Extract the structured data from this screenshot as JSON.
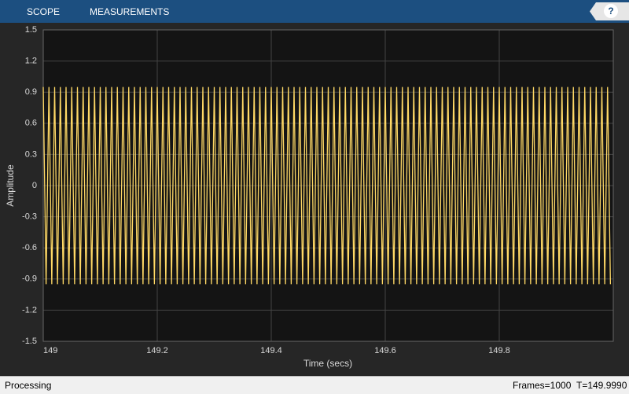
{
  "toolbar": {
    "tabs": [
      "SCOPE",
      "MEASUREMENTS"
    ],
    "help": "?"
  },
  "chart_data": {
    "type": "line",
    "xlabel": "Time (secs)",
    "ylabel": "Amplitude",
    "xlim": [
      149,
      150
    ],
    "xticks": [
      149,
      149.2,
      149.4,
      149.6,
      149.8
    ],
    "ylim": [
      -1.5,
      1.5
    ],
    "yticks": [
      -1.5,
      -1.2,
      -0.9,
      -0.6,
      -0.3,
      0,
      0.3,
      0.6,
      0.9,
      1.2,
      1.5
    ],
    "grid": true,
    "x": [
      149,
      149.005,
      149.01,
      149.015,
      149.02,
      149.025,
      149.03,
      149.035,
      149.04,
      149.045,
      149.05,
      149.055,
      149.06,
      149.065,
      149.07,
      149.075,
      149.08,
      149.085,
      149.09,
      149.095,
      149.1,
      149.105,
      149.11,
      149.115,
      149.12,
      149.125,
      149.13,
      149.135,
      149.14,
      149.145,
      149.15,
      149.155,
      149.16,
      149.165,
      149.17,
      149.175,
      149.18,
      149.185,
      149.19,
      149.195,
      149.2,
      149.205,
      149.21,
      149.215,
      149.22,
      149.225,
      149.23,
      149.235,
      149.24,
      149.245,
      149.25,
      149.255,
      149.26,
      149.265,
      149.27,
      149.275,
      149.28,
      149.285,
      149.29,
      149.295,
      149.3,
      149.305,
      149.31,
      149.315,
      149.32,
      149.325,
      149.33,
      149.335,
      149.34,
      149.345,
      149.35,
      149.355,
      149.36,
      149.365,
      149.37,
      149.375,
      149.38,
      149.385,
      149.39,
      149.395,
      149.4,
      149.405,
      149.41,
      149.415,
      149.42,
      149.425,
      149.43,
      149.435,
      149.44,
      149.445,
      149.45,
      149.455,
      149.46,
      149.465,
      149.47,
      149.475,
      149.48,
      149.485,
      149.49,
      149.495,
      149.5,
      149.505,
      149.51,
      149.515,
      149.52,
      149.525,
      149.53,
      149.535,
      149.54,
      149.545,
      149.55,
      149.555,
      149.56,
      149.565,
      149.57,
      149.575,
      149.58,
      149.585,
      149.59,
      149.595,
      149.6,
      149.605,
      149.61,
      149.615,
      149.62,
      149.625,
      149.63,
      149.635,
      149.64,
      149.645,
      149.65,
      149.655,
      149.66,
      149.665,
      149.67,
      149.675,
      149.68,
      149.685,
      149.69,
      149.695,
      149.7,
      149.705,
      149.71,
      149.715,
      149.72,
      149.725,
      149.73,
      149.735,
      149.74,
      149.745,
      149.75,
      149.755,
      149.76,
      149.765,
      149.77,
      149.775,
      149.78,
      149.785,
      149.79,
      149.795,
      149.8,
      149.805,
      149.81,
      149.815,
      149.82,
      149.825,
      149.83,
      149.835,
      149.84,
      149.845,
      149.85,
      149.855,
      149.86,
      149.865,
      149.87,
      149.875,
      149.88,
      149.885,
      149.89,
      149.895,
      149.9,
      149.905,
      149.91,
      149.915,
      149.92,
      149.925,
      149.93,
      149.935,
      149.94,
      149.945,
      149.95,
      149.955,
      149.96,
      149.965,
      149.97,
      149.975,
      149.98,
      149.985,
      149.99,
      149.995
    ],
    "series": [
      {
        "color": "#ffd966",
        "values": [
          0.95,
          -0.95,
          0.95,
          -0.95,
          0.95,
          -0.95,
          0.95,
          -0.95,
          0.95,
          -0.95,
          0.95,
          -0.95,
          0.95,
          -0.95,
          0.95,
          -0.95,
          0.95,
          -0.95,
          0.95,
          -0.95,
          0.95,
          -0.95,
          0.95,
          -0.95,
          0.95,
          -0.95,
          0.95,
          -0.95,
          0.95,
          -0.95,
          0.95,
          -0.95,
          0.95,
          -0.95,
          0.95,
          -0.95,
          0.95,
          -0.95,
          0.95,
          -0.95,
          0.95,
          -0.95,
          0.95,
          -0.95,
          0.95,
          -0.95,
          0.95,
          -0.95,
          0.95,
          -0.95,
          0.95,
          -0.95,
          0.95,
          -0.95,
          0.95,
          -0.95,
          0.95,
          -0.95,
          0.95,
          -0.95,
          0.95,
          -0.95,
          0.95,
          -0.95,
          0.95,
          -0.95,
          0.95,
          -0.95,
          0.95,
          -0.95,
          0.95,
          -0.95,
          0.95,
          -0.95,
          0.95,
          -0.95,
          0.95,
          -0.95,
          0.95,
          -0.95,
          0.95,
          -0.95,
          0.95,
          -0.95,
          0.95,
          -0.95,
          0.95,
          -0.95,
          0.95,
          -0.95,
          0.95,
          -0.95,
          0.95,
          -0.95,
          0.95,
          -0.95,
          0.95,
          -0.95,
          0.95,
          -0.95,
          0.95,
          -0.95,
          0.95,
          -0.95,
          0.95,
          -0.95,
          0.95,
          -0.95,
          0.95,
          -0.95,
          0.95,
          -0.95,
          0.95,
          -0.95,
          0.95,
          -0.95,
          0.95,
          -0.95,
          0.95,
          -0.95,
          0.95,
          -0.95,
          0.95,
          -0.95,
          0.95,
          -0.95,
          0.95,
          -0.95,
          0.95,
          -0.95,
          0.95,
          -0.95,
          0.95,
          -0.95,
          0.95,
          -0.95,
          0.95,
          -0.95,
          0.95,
          -0.95,
          0.95,
          -0.95,
          0.95,
          -0.95,
          0.95,
          -0.95,
          0.95,
          -0.95,
          0.95,
          -0.95,
          0.95,
          -0.95,
          0.95,
          -0.95,
          0.95,
          -0.95,
          0.95,
          -0.95,
          0.95,
          -0.95,
          0.95,
          -0.95,
          0.95,
          -0.95,
          0.95,
          -0.95,
          0.95,
          -0.95,
          0.95,
          -0.95,
          0.95,
          -0.95,
          0.95,
          -0.95,
          0.95,
          -0.95,
          0.95,
          -0.95,
          0.95,
          -0.95,
          0.95,
          -0.95,
          0.95,
          -0.95,
          0.95,
          -0.95,
          0.95,
          -0.95,
          0.95,
          -0.95,
          0.95,
          -0.95,
          0.95,
          -0.95,
          0.95,
          -0.95,
          0.95,
          -0.95,
          0.95,
          -0.95
        ]
      }
    ]
  },
  "status_bar": {
    "state": "Processing",
    "frames": "Frames=1000",
    "time": "T=149.9990"
  }
}
